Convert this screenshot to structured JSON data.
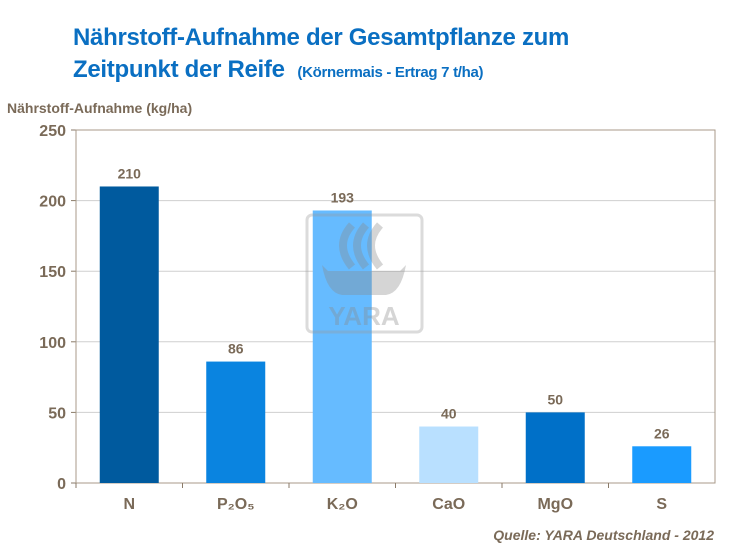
{
  "chart_data": {
    "type": "bar",
    "title_line1": "Nährstoff-Aufnahme der Gesamtpflanze zum",
    "title_line2": "Zeitpunkt der Reife",
    "subtitle": "(Körnermais - Ertrag 7 t/ha)",
    "ylabel": "Nährstoff-Aufnahme  (kg/ha)",
    "xlabel": "",
    "categories": [
      "N",
      "P₂O₅",
      "K₂O",
      "CaO",
      "MgO",
      "S"
    ],
    "values": [
      210,
      86,
      193,
      40,
      50,
      26
    ],
    "colors": [
      "#005a9e",
      "#0a84e0",
      "#66bbff",
      "#b9e0ff",
      "#0070c8",
      "#1a9bff"
    ],
    "ylim": [
      0,
      250
    ],
    "yticks": [
      0,
      50,
      100,
      150,
      200,
      250
    ],
    "grid": true,
    "legend": "none",
    "source": "Quelle: YARA Deutschland - 2012",
    "watermark": "YARA"
  }
}
